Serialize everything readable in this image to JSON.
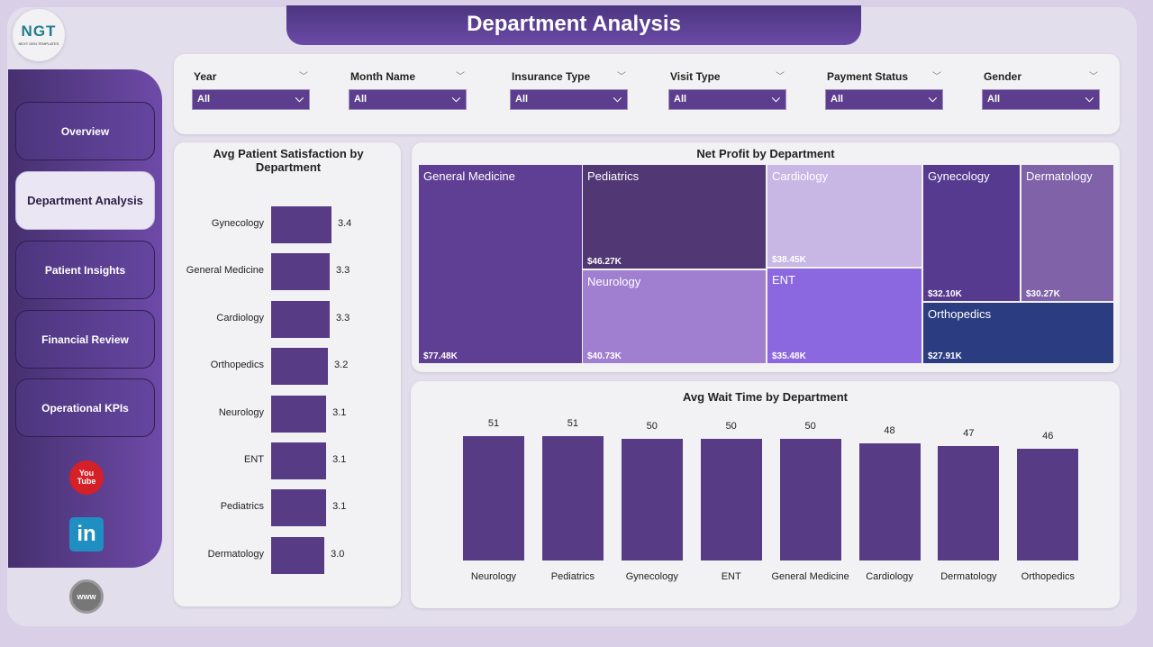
{
  "header": {
    "title": "Department Analysis"
  },
  "logo": {
    "text": "NGT",
    "subtitle": "NEXT GEN TEMPLATES"
  },
  "sidebar": {
    "items": [
      {
        "label": "Overview",
        "active": false
      },
      {
        "label": "Department Analysis",
        "active": true
      },
      {
        "label": "Patient Insights",
        "active": false
      },
      {
        "label": "Financial Review",
        "active": false
      },
      {
        "label": "Operational KPIs",
        "active": false
      }
    ],
    "social": [
      {
        "icon": "youtube-icon",
        "label": "You Tube"
      },
      {
        "icon": "linkedin-icon",
        "label": "in"
      },
      {
        "icon": "globe-www-icon",
        "label": "www"
      }
    ]
  },
  "filters": [
    {
      "label": "Year",
      "value": "All"
    },
    {
      "label": "Month Name",
      "value": "All"
    },
    {
      "label": "Insurance Type",
      "value": "All"
    },
    {
      "label": "Visit Type",
      "value": "All"
    },
    {
      "label": "Payment Status",
      "value": "All"
    },
    {
      "label": "Gender",
      "value": "All"
    }
  ],
  "colors": {
    "accent": "#5c3d8e",
    "bar": "#573c85"
  },
  "chart_data": [
    {
      "type": "bar",
      "orientation": "horizontal",
      "title": "Avg Patient Satisfaction by Department",
      "categories": [
        "Gynecology",
        "General Medicine",
        "Cardiology",
        "Orthopedics",
        "Neurology",
        "ENT",
        "Pediatrics",
        "Dermatology"
      ],
      "values": [
        3.4,
        3.3,
        3.3,
        3.2,
        3.1,
        3.1,
        3.1,
        3.0
      ],
      "labels": [
        "3.4",
        "3.3",
        "3.3",
        "3.2",
        "3.1",
        "3.1",
        "3.1",
        "3.0"
      ]
    },
    {
      "type": "treemap",
      "title": "Net Profit by Department",
      "items": [
        {
          "name": "General Medicine",
          "value": 77.48,
          "label": "$77.48K",
          "color": "#5f3f94"
        },
        {
          "name": "Pediatrics",
          "value": 46.27,
          "label": "$46.27K",
          "color": "#513874"
        },
        {
          "name": "Neurology",
          "value": 40.73,
          "label": "$40.73K",
          "color": "#a07fd0"
        },
        {
          "name": "Cardiology",
          "value": 38.45,
          "label": "$38.45K",
          "color": "#c8b6e4"
        },
        {
          "name": "ENT",
          "value": 35.48,
          "label": "$35.48K",
          "color": "#8c68e0"
        },
        {
          "name": "Gynecology",
          "value": 32.1,
          "label": "$32.10K",
          "color": "#553a90"
        },
        {
          "name": "Dermatology",
          "value": 30.27,
          "label": "$30.27K",
          "color": "#7f62a8"
        },
        {
          "name": "Orthopedics",
          "value": 27.91,
          "label": "$27.91K",
          "color": "#2b3c80"
        }
      ]
    },
    {
      "type": "bar",
      "title": "Avg Wait Time by Department",
      "categories": [
        "Neurology",
        "Pediatrics",
        "Gynecology",
        "ENT",
        "General Medicine",
        "Cardiology",
        "Dermatology",
        "Orthopedics"
      ],
      "values": [
        51,
        51,
        50,
        50,
        50,
        48,
        47,
        46
      ]
    }
  ]
}
